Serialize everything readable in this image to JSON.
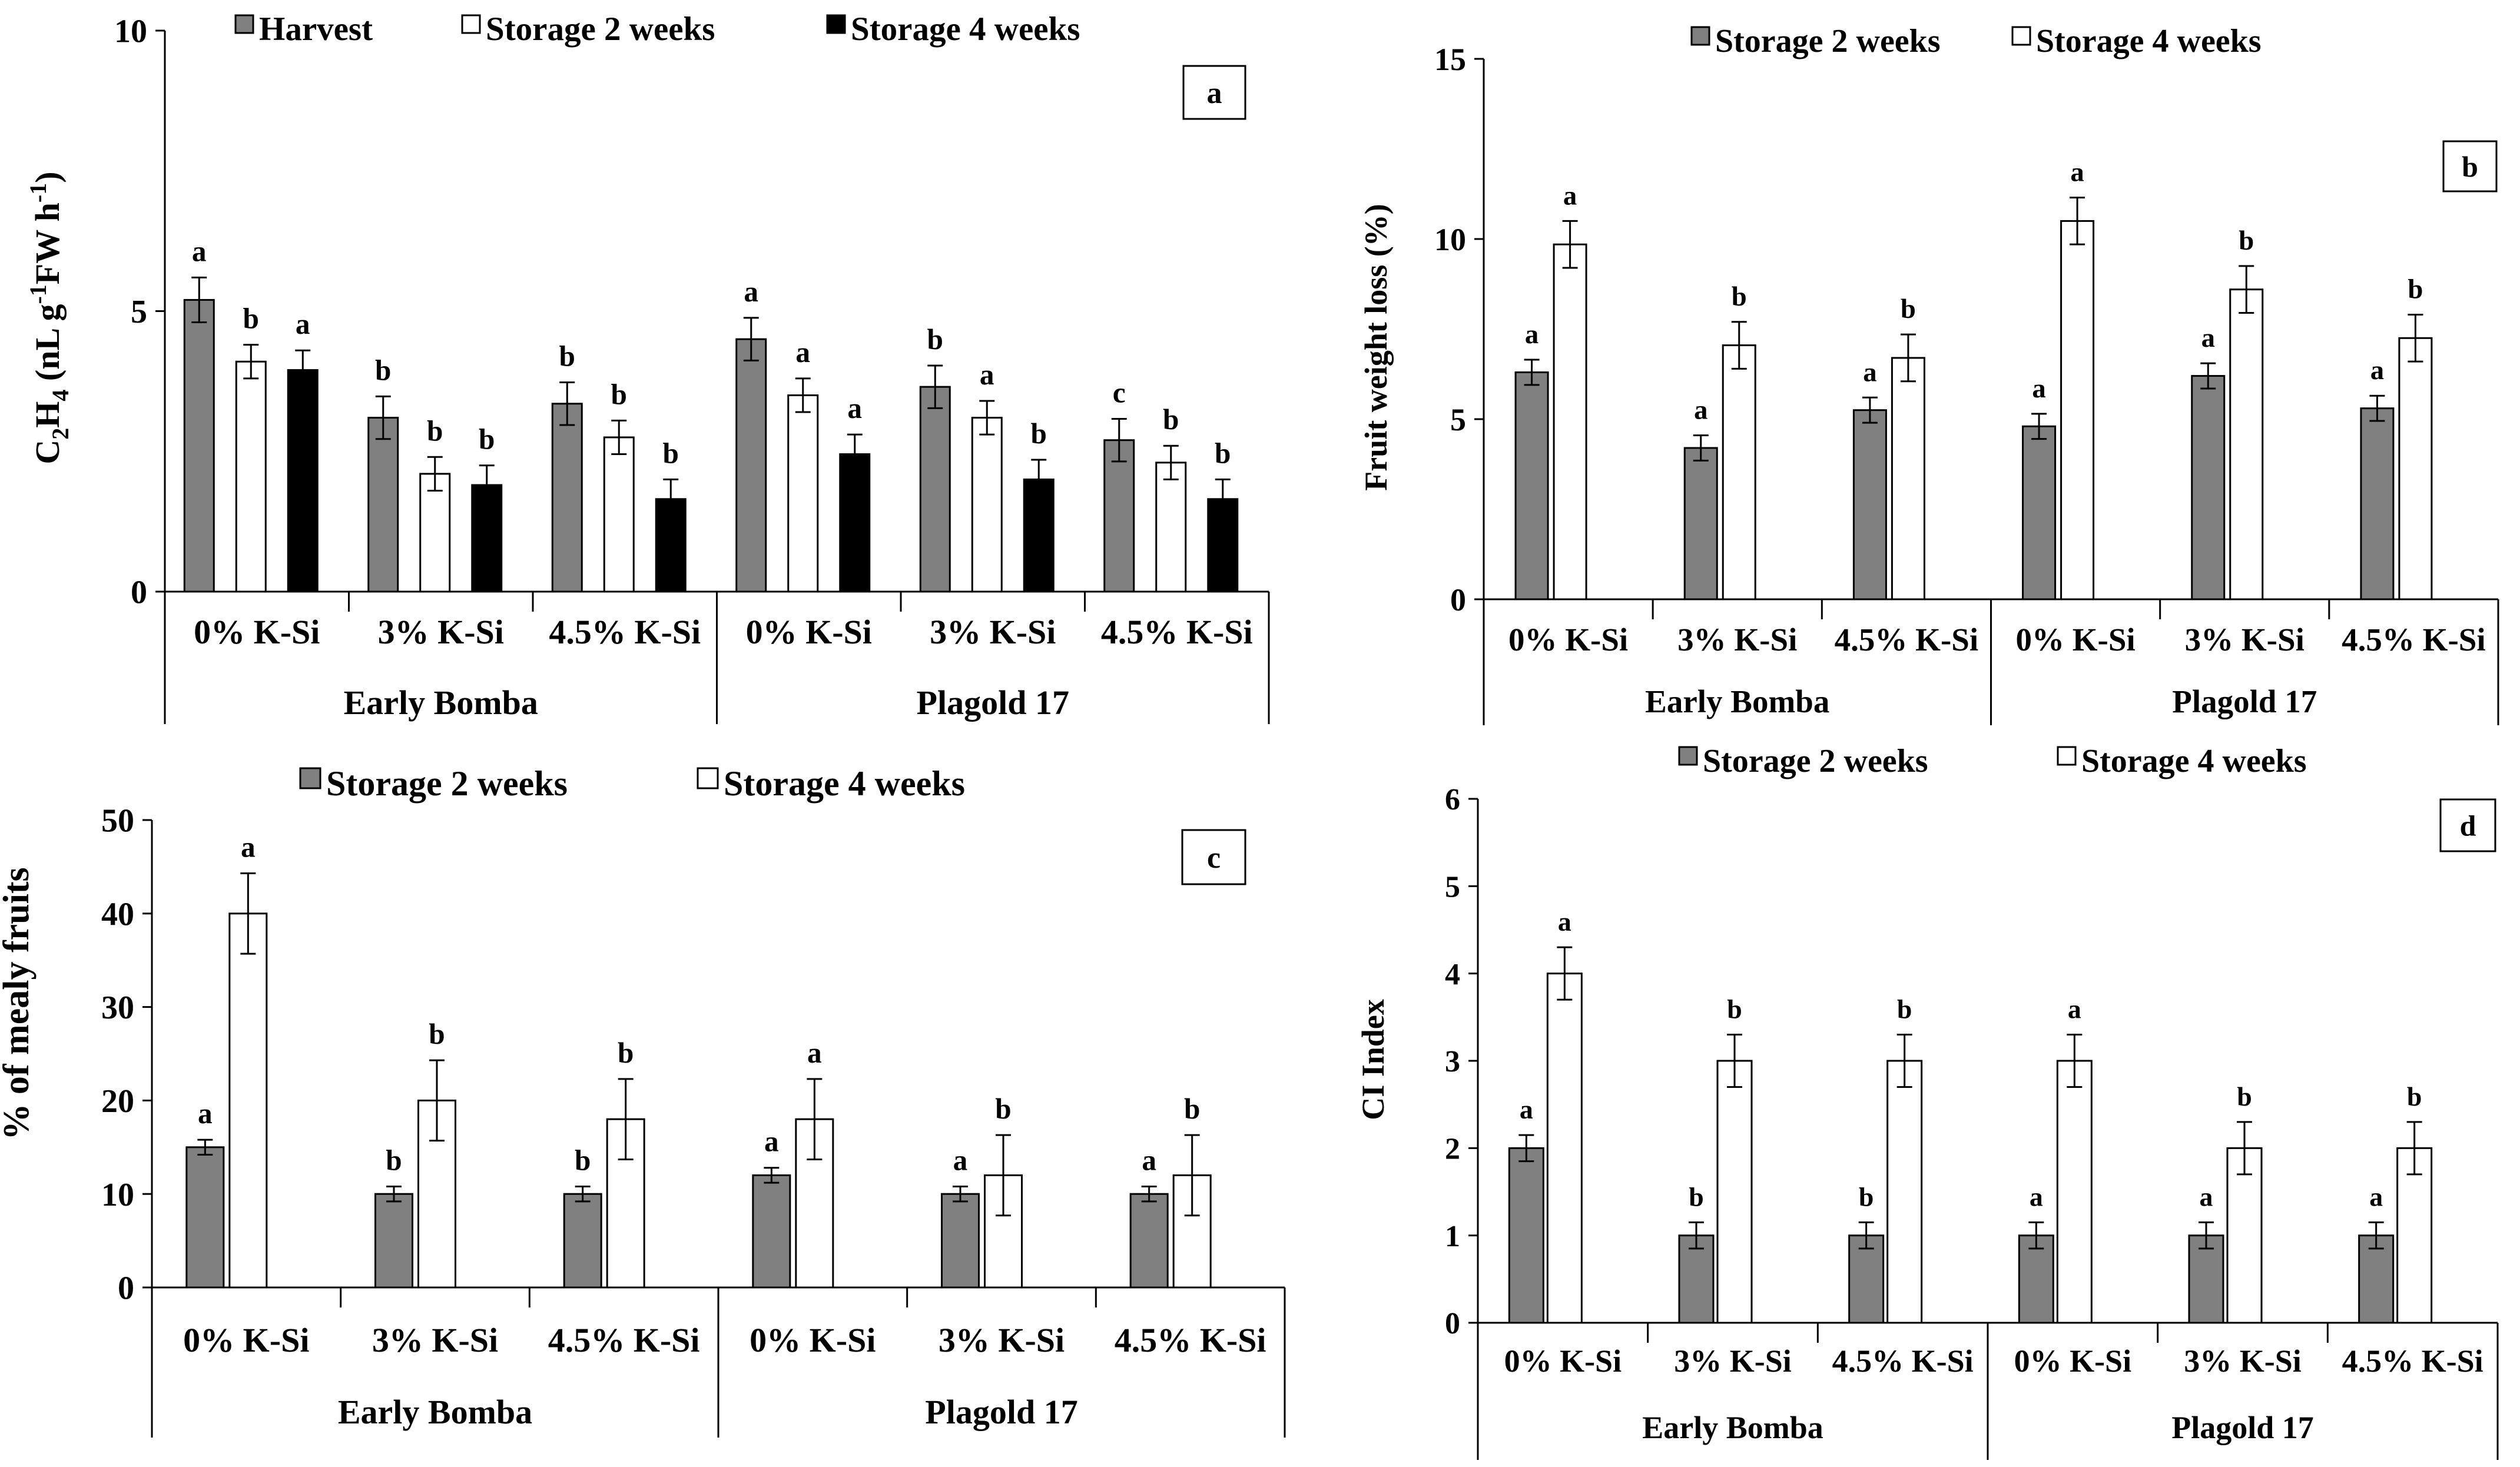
{
  "colors": {
    "s_harvest": "#808080",
    "s_storage2": "#ffffff",
    "s_storage4": "#000000",
    "bar_stroke": "#000000"
  },
  "chart_data": [
    {
      "id": "a",
      "type": "bar",
      "panel_label": "a",
      "ylabel_main": "C",
      "ylabel_sub2": "2",
      "ylabel_mid": "H",
      "ylabel_sub4": "4",
      "ylabel_rest1": " (nL g",
      "ylabel_sup": "-1",
      "ylabel_rest2": "FW h",
      "ylabel_sup2": "-1",
      "ylabel_end": ")",
      "ylim": [
        0,
        10
      ],
      "yticks": [
        0,
        5,
        10
      ],
      "categories": [
        "0% K-Si",
        "3% K-Si",
        "4.5% K-Si",
        "0% K-Si",
        "3% K-Si",
        "4.5% K-Si"
      ],
      "groups": [
        "Early Bomba",
        "Plagold 17"
      ],
      "legend": [
        "Harvest",
        "Storage 2 weeks",
        "Storage 4 weeks"
      ],
      "series": [
        {
          "name": "Harvest",
          "color": "#808080",
          "values": [
            5.2,
            3.1,
            3.35,
            4.5,
            3.65,
            2.7
          ],
          "errors": [
            0.4,
            0.38,
            0.38,
            0.38,
            0.38,
            0.38
          ],
          "letters": [
            "a",
            "b",
            "b",
            "a",
            "b",
            "c"
          ]
        },
        {
          "name": "Storage 2 weeks",
          "color": "#ffffff",
          "values": [
            4.1,
            2.1,
            2.75,
            3.5,
            3.1,
            2.3
          ],
          "errors": [
            0.3,
            0.3,
            0.3,
            0.3,
            0.3,
            0.3
          ],
          "letters": [
            "b",
            "b",
            "b",
            "a",
            "a",
            "b"
          ]
        },
        {
          "name": "Storage 4 weeks",
          "color": "#000000",
          "values": [
            3.95,
            1.9,
            1.65,
            2.45,
            2.0,
            1.65
          ],
          "errors": [
            0.35,
            0.35,
            0.35,
            0.35,
            0.35,
            0.35
          ],
          "letters": [
            "a",
            "b",
            "b",
            "a",
            "b",
            "b"
          ]
        }
      ]
    },
    {
      "id": "b",
      "type": "bar",
      "panel_label": "b",
      "ylabel": "Fruit weight loss  (%)",
      "ylim": [
        0,
        15
      ],
      "yticks": [
        0,
        5,
        10,
        15
      ],
      "categories": [
        "0% K-Si",
        "3% K-Si",
        "4.5% K-Si",
        "0% K-Si",
        "3% K-Si",
        "4.5% K-Si"
      ],
      "groups": [
        "Early Bomba",
        "Plagold 17"
      ],
      "legend": [
        "Storage 2 weeks",
        "Storage 4 weeks"
      ],
      "series": [
        {
          "name": "Storage 2 weeks",
          "color": "#808080",
          "values": [
            6.3,
            4.2,
            5.25,
            4.8,
            6.2,
            5.3
          ],
          "errors": [
            0.35,
            0.35,
            0.35,
            0.35,
            0.35,
            0.35
          ],
          "letters": [
            "a",
            "a",
            "a",
            "a",
            "a",
            "a"
          ]
        },
        {
          "name": "Storage 4 weeks",
          "color": "#ffffff",
          "values": [
            9.85,
            7.05,
            6.7,
            10.5,
            8.6,
            7.25
          ],
          "errors": [
            0.65,
            0.65,
            0.65,
            0.65,
            0.65,
            0.65
          ],
          "letters": [
            "a",
            "b",
            "b",
            "a",
            "b",
            "b"
          ]
        }
      ]
    },
    {
      "id": "c",
      "type": "bar",
      "panel_label": "c",
      "ylabel": "% of mealy fruits",
      "ylim": [
        0,
        50
      ],
      "yticks": [
        0,
        10,
        20,
        30,
        40,
        50
      ],
      "categories": [
        "0% K-Si",
        "3% K-Si",
        "4.5% K-Si",
        "0% K-Si",
        "3% K-Si",
        "4.5% K-Si"
      ],
      "groups": [
        "Early Bomba",
        "Plagold 17"
      ],
      "legend": [
        "Storage 2 weeks",
        "Storage 4 weeks"
      ],
      "series": [
        {
          "name": "Storage 2 weeks",
          "color": "#808080",
          "values": [
            15,
            10,
            10,
            12,
            10,
            10
          ],
          "errors": [
            0.8,
            0.8,
            0.8,
            0.8,
            0.8,
            0.8
          ],
          "letters": [
            "a",
            "b",
            "b",
            "a",
            "a",
            "a"
          ]
        },
        {
          "name": "Storage 4 weeks",
          "color": "#ffffff",
          "values": [
            40,
            20,
            18,
            18,
            12,
            12
          ],
          "errors": [
            4.3,
            4.3,
            4.3,
            4.3,
            4.3,
            4.3
          ],
          "letters": [
            "a",
            "b",
            "b",
            "a",
            "b",
            "b"
          ]
        }
      ]
    },
    {
      "id": "d",
      "type": "bar",
      "panel_label": "d",
      "ylabel": "CI  Index",
      "ylim": [
        0,
        6
      ],
      "yticks": [
        0,
        1,
        2,
        3,
        4,
        5,
        6
      ],
      "categories": [
        "0% K-Si",
        "3% K-Si",
        "4.5% K-Si",
        "0% K-Si",
        "3% K-Si",
        "4.5% K-Si"
      ],
      "groups": [
        "Early Bomba",
        "Plagold 17"
      ],
      "legend": [
        "Storage 2 weeks",
        "Storage 4 weeks"
      ],
      "series": [
        {
          "name": "Storage 2 weeks",
          "color": "#808080",
          "values": [
            2,
            1,
            1,
            1,
            1,
            1
          ],
          "errors": [
            0.15,
            0.15,
            0.15,
            0.15,
            0.15,
            0.15
          ],
          "letters": [
            "a",
            "b",
            "b",
            "a",
            "a",
            "a"
          ]
        },
        {
          "name": "Storage 4 weeks",
          "color": "#ffffff",
          "values": [
            4,
            3,
            3,
            3,
            2,
            2
          ],
          "errors": [
            0.3,
            0.3,
            0.3,
            0.3,
            0.3,
            0.3
          ],
          "letters": [
            "a",
            "b",
            "b",
            "a",
            "b",
            "b"
          ]
        }
      ]
    }
  ]
}
